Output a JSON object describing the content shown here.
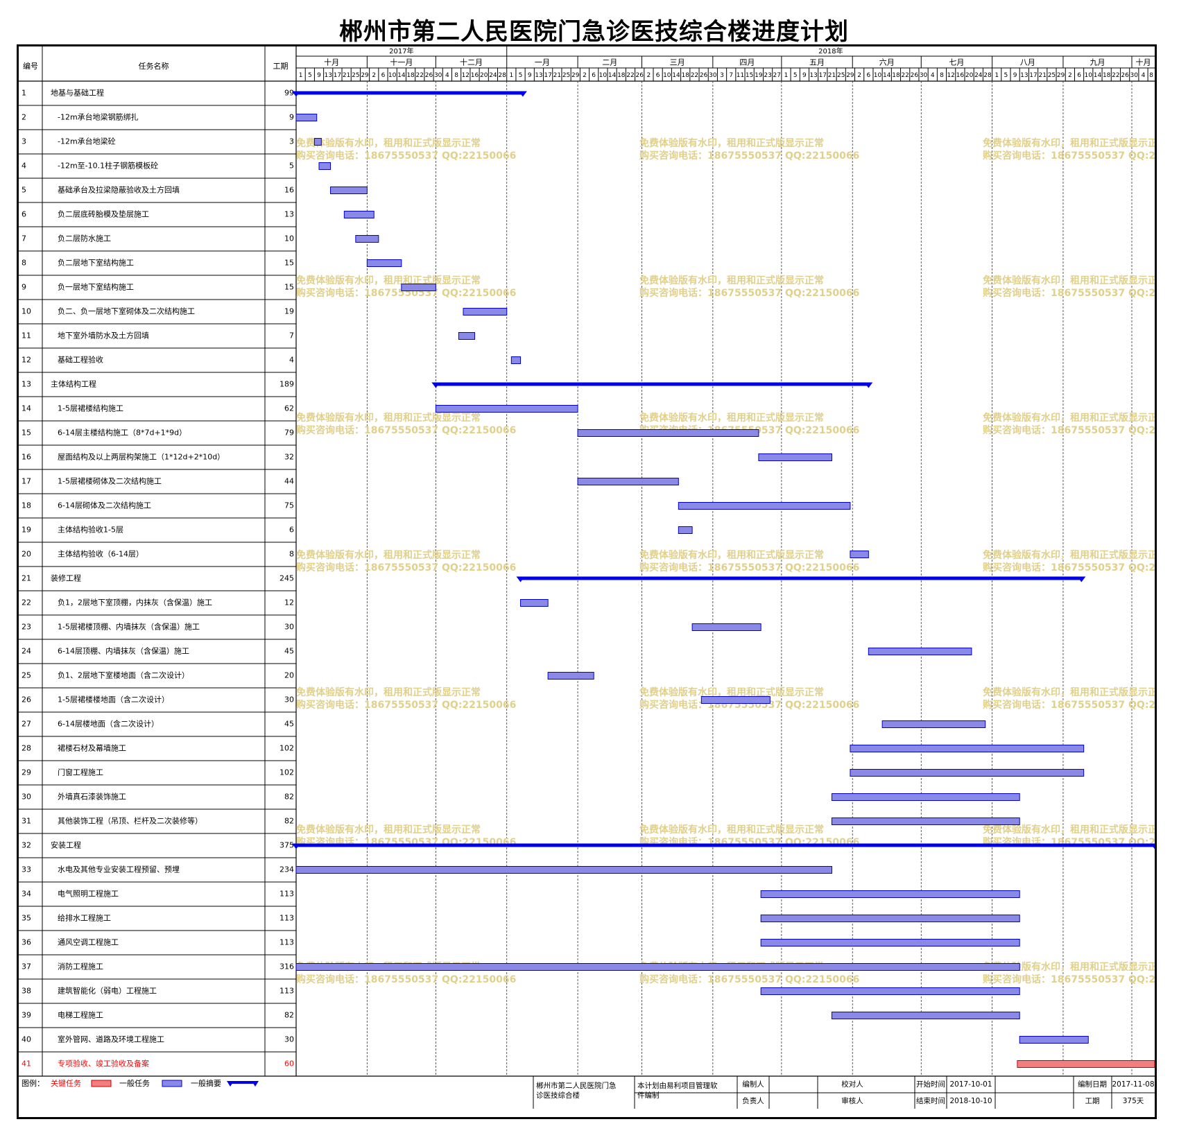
{
  "title": "郴州市第二人民医院门急诊医技综合楼进度计划",
  "columns": {
    "id": "编号",
    "name": "任务名称",
    "duration": "工期"
  },
  "timeline": {
    "years": [
      {
        "label": "2017年",
        "start": "2017-10-01",
        "end": "2017-12-31"
      },
      {
        "label": "2018年",
        "start": "2018-01-01",
        "end": "2018-10-10"
      }
    ],
    "months": [
      {
        "label": "十月",
        "start": "2017-10-01",
        "end": "2017-10-31"
      },
      {
        "label": "十一月",
        "start": "2017-11-01",
        "end": "2017-11-30"
      },
      {
        "label": "十二月",
        "start": "2017-12-01",
        "end": "2017-12-31"
      },
      {
        "label": "一月",
        "start": "2018-01-01",
        "end": "2018-01-31"
      },
      {
        "label": "二月",
        "start": "2018-02-01",
        "end": "2018-02-28"
      },
      {
        "label": "三月",
        "start": "2018-03-01",
        "end": "2018-03-31"
      },
      {
        "label": "四月",
        "start": "2018-04-01",
        "end": "2018-04-30"
      },
      {
        "label": "五月",
        "start": "2018-05-01",
        "end": "2018-05-31"
      },
      {
        "label": "六月",
        "start": "2018-06-01",
        "end": "2018-06-30"
      },
      {
        "label": "七月",
        "start": "2018-07-01",
        "end": "2018-07-31"
      },
      {
        "label": "八月",
        "start": "2018-08-01",
        "end": "2018-08-31"
      },
      {
        "label": "九月",
        "start": "2018-09-01",
        "end": "2018-09-30"
      },
      {
        "label": "十月",
        "start": "2018-10-01",
        "end": "2018-10-10"
      }
    ],
    "ticks": [
      {
        "label": "1",
        "date": "2017-10-01"
      },
      {
        "label": "5",
        "date": "2017-10-05"
      },
      {
        "label": "9",
        "date": "2017-10-09"
      },
      {
        "label": "13",
        "date": "2017-10-13"
      },
      {
        "label": "17",
        "date": "2017-10-17"
      },
      {
        "label": "21",
        "date": "2017-10-21"
      },
      {
        "label": "25",
        "date": "2017-10-25"
      },
      {
        "label": "29",
        "date": "2017-10-29"
      },
      {
        "label": "2",
        "date": "2017-11-02"
      },
      {
        "label": "6",
        "date": "2017-11-06"
      },
      {
        "label": "10",
        "date": "2017-11-10"
      },
      {
        "label": "14",
        "date": "2017-11-14"
      },
      {
        "label": "18",
        "date": "2017-11-18"
      },
      {
        "label": "22",
        "date": "2017-11-22"
      },
      {
        "label": "26",
        "date": "2017-11-26"
      },
      {
        "label": "30",
        "date": "2017-11-30"
      },
      {
        "label": "4",
        "date": "2017-12-04"
      },
      {
        "label": "8",
        "date": "2017-12-08"
      },
      {
        "label": "12",
        "date": "2017-12-12"
      },
      {
        "label": "16",
        "date": "2017-12-16"
      },
      {
        "label": "20",
        "date": "2017-12-20"
      },
      {
        "label": "24",
        "date": "2017-12-24"
      },
      {
        "label": "28",
        "date": "2017-12-28"
      },
      {
        "label": "1",
        "date": "2018-01-01"
      },
      {
        "label": "5",
        "date": "2018-01-05"
      },
      {
        "label": "9",
        "date": "2018-01-09"
      },
      {
        "label": "13",
        "date": "2018-01-13"
      },
      {
        "label": "17",
        "date": "2018-01-17"
      },
      {
        "label": "21",
        "date": "2018-01-21"
      },
      {
        "label": "25",
        "date": "2018-01-25"
      },
      {
        "label": "29",
        "date": "2018-01-29"
      },
      {
        "label": "2",
        "date": "2018-02-02"
      },
      {
        "label": "6",
        "date": "2018-02-06"
      },
      {
        "label": "10",
        "date": "2018-02-10"
      },
      {
        "label": "14",
        "date": "2018-02-14"
      },
      {
        "label": "18",
        "date": "2018-02-18"
      },
      {
        "label": "22",
        "date": "2018-02-22"
      },
      {
        "label": "26",
        "date": "2018-02-26"
      },
      {
        "label": "2",
        "date": "2018-03-02"
      },
      {
        "label": "6",
        "date": "2018-03-06"
      },
      {
        "label": "10",
        "date": "2018-03-10"
      },
      {
        "label": "14",
        "date": "2018-03-14"
      },
      {
        "label": "18",
        "date": "2018-03-18"
      },
      {
        "label": "22",
        "date": "2018-03-22"
      },
      {
        "label": "26",
        "date": "2018-03-26"
      },
      {
        "label": "30",
        "date": "2018-03-30"
      },
      {
        "label": "3",
        "date": "2018-04-03"
      },
      {
        "label": "7",
        "date": "2018-04-07"
      },
      {
        "label": "11",
        "date": "2018-04-11"
      },
      {
        "label": "15",
        "date": "2018-04-15"
      },
      {
        "label": "19",
        "date": "2018-04-19"
      },
      {
        "label": "23",
        "date": "2018-04-23"
      },
      {
        "label": "27",
        "date": "2018-04-27"
      },
      {
        "label": "1",
        "date": "2018-05-01"
      },
      {
        "label": "5",
        "date": "2018-05-05"
      },
      {
        "label": "9",
        "date": "2018-05-09"
      },
      {
        "label": "13",
        "date": "2018-05-13"
      },
      {
        "label": "17",
        "date": "2018-05-17"
      },
      {
        "label": "21",
        "date": "2018-05-21"
      },
      {
        "label": "25",
        "date": "2018-05-25"
      },
      {
        "label": "29",
        "date": "2018-05-29"
      },
      {
        "label": "2",
        "date": "2018-06-02"
      },
      {
        "label": "6",
        "date": "2018-06-06"
      },
      {
        "label": "10",
        "date": "2018-06-10"
      },
      {
        "label": "14",
        "date": "2018-06-14"
      },
      {
        "label": "18",
        "date": "2018-06-18"
      },
      {
        "label": "22",
        "date": "2018-06-22"
      },
      {
        "label": "26",
        "date": "2018-06-26"
      },
      {
        "label": "30",
        "date": "2018-06-30"
      },
      {
        "label": "4",
        "date": "2018-07-04"
      },
      {
        "label": "8",
        "date": "2018-07-08"
      },
      {
        "label": "12",
        "date": "2018-07-12"
      },
      {
        "label": "16",
        "date": "2018-07-16"
      },
      {
        "label": "20",
        "date": "2018-07-20"
      },
      {
        "label": "24",
        "date": "2018-07-24"
      },
      {
        "label": "28",
        "date": "2018-07-28"
      },
      {
        "label": "1",
        "date": "2018-08-01"
      },
      {
        "label": "5",
        "date": "2018-08-05"
      },
      {
        "label": "9",
        "date": "2018-08-09"
      },
      {
        "label": "13",
        "date": "2018-08-13"
      },
      {
        "label": "17",
        "date": "2018-08-17"
      },
      {
        "label": "21",
        "date": "2018-08-21"
      },
      {
        "label": "25",
        "date": "2018-08-25"
      },
      {
        "label": "29",
        "date": "2018-08-29"
      },
      {
        "label": "2",
        "date": "2018-09-02"
      },
      {
        "label": "6",
        "date": "2018-09-06"
      },
      {
        "label": "10",
        "date": "2018-09-10"
      },
      {
        "label": "14",
        "date": "2018-09-14"
      },
      {
        "label": "18",
        "date": "2018-09-18"
      },
      {
        "label": "22",
        "date": "2018-09-22"
      },
      {
        "label": "26",
        "date": "2018-09-26"
      },
      {
        "label": "30",
        "date": "2018-09-30"
      },
      {
        "label": "4",
        "date": "2018-10-04"
      },
      {
        "label": "8",
        "date": "2018-10-08"
      }
    ]
  },
  "chart_data": {
    "type": "gantt",
    "x_range": [
      "2017-10-01",
      "2018-10-10"
    ],
    "tasks": [
      {
        "id": "1",
        "name": "地基与基础工程",
        "duration": "99",
        "start": "2017-10-01",
        "end": "2018-01-07",
        "kind": "summary",
        "indent": 0
      },
      {
        "id": "2",
        "name": "-12m承台地梁钢筋绑扎",
        "duration": "9",
        "start": "2017-10-01",
        "end": "2017-10-09",
        "kind": "task",
        "indent": 1
      },
      {
        "id": "3",
        "name": "-12m承台地梁砼",
        "duration": "3",
        "start": "2017-10-09",
        "end": "2017-10-11",
        "kind": "task",
        "indent": 1
      },
      {
        "id": "4",
        "name": "-12m至-10.1柱子钢筋模板砼",
        "duration": "5",
        "start": "2017-10-11",
        "end": "2017-10-15",
        "kind": "task",
        "indent": 1
      },
      {
        "id": "5",
        "name": "基础承台及拉梁隐蔽验收及土方回填",
        "duration": "16",
        "start": "2017-10-16",
        "end": "2017-10-31",
        "kind": "task",
        "indent": 1
      },
      {
        "id": "6",
        "name": "负二层底砖胎模及垫层施工",
        "duration": "13",
        "start": "2017-10-22",
        "end": "2017-11-03",
        "kind": "task",
        "indent": 1
      },
      {
        "id": "7",
        "name": "负二层防水施工",
        "duration": "10",
        "start": "2017-10-27",
        "end": "2017-11-05",
        "kind": "task",
        "indent": 1
      },
      {
        "id": "8",
        "name": "负二层地下室结构施工",
        "duration": "15",
        "start": "2017-11-01",
        "end": "2017-11-15",
        "kind": "task",
        "indent": 1
      },
      {
        "id": "9",
        "name": "负一层地下室结构施工",
        "duration": "15",
        "start": "2017-11-16",
        "end": "2017-11-30",
        "kind": "task",
        "indent": 1
      },
      {
        "id": "10",
        "name": "负二、负一层地下室砌体及二次结构施工",
        "duration": "19",
        "start": "2017-12-13",
        "end": "2017-12-31",
        "kind": "task",
        "indent": 1
      },
      {
        "id": "11",
        "name": "地下室外墙防水及土方回填",
        "duration": "7",
        "start": "2017-12-11",
        "end": "2017-12-17",
        "kind": "task",
        "indent": 1
      },
      {
        "id": "12",
        "name": "基础工程验收",
        "duration": "4",
        "start": "2018-01-03",
        "end": "2018-01-06",
        "kind": "task",
        "indent": 1
      },
      {
        "id": "13",
        "name": "主体结构工程",
        "duration": "189",
        "start": "2017-12-01",
        "end": "2018-06-07",
        "kind": "summary",
        "indent": 0
      },
      {
        "id": "14",
        "name": "1-5层裙楼结构施工",
        "duration": "62",
        "start": "2017-12-01",
        "end": "2018-01-31",
        "kind": "task",
        "indent": 1
      },
      {
        "id": "15",
        "name": "6-14层主楼结构施工（8*7d+1*9d）",
        "duration": "79",
        "start": "2018-02-01",
        "end": "2018-04-20",
        "kind": "task",
        "indent": 1
      },
      {
        "id": "16",
        "name": "屋面结构及以上两层构架施工（1*12d+2*10d）",
        "duration": "32",
        "start": "2018-04-21",
        "end": "2018-05-22",
        "kind": "task",
        "indent": 1
      },
      {
        "id": "17",
        "name": "1-5层裙楼砌体及二次结构施工",
        "duration": "44",
        "start": "2018-02-01",
        "end": "2018-03-16",
        "kind": "task",
        "indent": 1
      },
      {
        "id": "18",
        "name": "6-14层砌体及二次结构施工",
        "duration": "75",
        "start": "2018-03-17",
        "end": "2018-05-30",
        "kind": "task",
        "indent": 1
      },
      {
        "id": "19",
        "name": "主体结构验收1-5层",
        "duration": "6",
        "start": "2018-03-17",
        "end": "2018-03-22",
        "kind": "task",
        "indent": 1
      },
      {
        "id": "20",
        "name": "主体结构验收（6-14层）",
        "duration": "8",
        "start": "2018-05-31",
        "end": "2018-06-07",
        "kind": "task",
        "indent": 1
      },
      {
        "id": "21",
        "name": "装修工程",
        "duration": "245",
        "start": "2018-01-07",
        "end": "2018-09-08",
        "kind": "summary",
        "indent": 0
      },
      {
        "id": "22",
        "name": "负1，2层地下室顶棚，内抹灰（含保温）施工",
        "duration": "12",
        "start": "2018-01-07",
        "end": "2018-01-18",
        "kind": "task",
        "indent": 1
      },
      {
        "id": "23",
        "name": "1-5层裙楼顶棚、内墙抹灰（含保温）施工",
        "duration": "30",
        "start": "2018-03-23",
        "end": "2018-04-21",
        "kind": "task",
        "indent": 1
      },
      {
        "id": "24",
        "name": "6-14层顶棚、内墙抹灰（含保温）施工",
        "duration": "45",
        "start": "2018-06-08",
        "end": "2018-07-22",
        "kind": "task",
        "indent": 1
      },
      {
        "id": "25",
        "name": "负1、2层地下室楼地面（含二次设计）",
        "duration": "20",
        "start": "2018-01-19",
        "end": "2018-02-07",
        "kind": "task",
        "indent": 1
      },
      {
        "id": "26",
        "name": "1-5层裙楼楼地面（含二次设计）",
        "duration": "30",
        "start": "2018-03-27",
        "end": "2018-04-25",
        "kind": "task",
        "indent": 1
      },
      {
        "id": "27",
        "name": "6-14层楼地面（含二次设计）",
        "duration": "45",
        "start": "2018-06-14",
        "end": "2018-07-28",
        "kind": "task",
        "indent": 1
      },
      {
        "id": "28",
        "name": "裙楼石材及幕墙施工",
        "duration": "102",
        "start": "2018-05-31",
        "end": "2018-09-09",
        "kind": "task",
        "indent": 1
      },
      {
        "id": "29",
        "name": "门窗工程施工",
        "duration": "102",
        "start": "2018-05-31",
        "end": "2018-09-09",
        "kind": "task",
        "indent": 1
      },
      {
        "id": "30",
        "name": "外墙真石漆装饰施工",
        "duration": "82",
        "start": "2018-05-23",
        "end": "2018-08-12",
        "kind": "task",
        "indent": 1
      },
      {
        "id": "31",
        "name": "其他装饰工程（吊顶、栏杆及二次装修等）",
        "duration": "82",
        "start": "2018-05-23",
        "end": "2018-08-12",
        "kind": "task",
        "indent": 1
      },
      {
        "id": "32",
        "name": "安装工程",
        "duration": "375",
        "start": "2017-10-01",
        "end": "2018-10-10",
        "kind": "summary",
        "indent": 0
      },
      {
        "id": "33",
        "name": "水电及其他专业安装工程预留、预埋",
        "duration": "234",
        "start": "2017-10-01",
        "end": "2018-05-22",
        "kind": "task",
        "indent": 1
      },
      {
        "id": "34",
        "name": "电气照明工程施工",
        "duration": "113",
        "start": "2018-04-22",
        "end": "2018-08-12",
        "kind": "task",
        "indent": 1
      },
      {
        "id": "35",
        "name": "给排水工程施工",
        "duration": "113",
        "start": "2018-04-22",
        "end": "2018-08-12",
        "kind": "task",
        "indent": 1
      },
      {
        "id": "36",
        "name": "通风空调工程施工",
        "duration": "113",
        "start": "2018-04-22",
        "end": "2018-08-12",
        "kind": "task",
        "indent": 1
      },
      {
        "id": "37",
        "name": "消防工程施工",
        "duration": "316",
        "start": "2017-10-01",
        "end": "2018-08-12",
        "kind": "task",
        "indent": 1
      },
      {
        "id": "38",
        "name": "建筑智能化（弱电）工程施工",
        "duration": "113",
        "start": "2018-04-22",
        "end": "2018-08-12",
        "kind": "task",
        "indent": 1
      },
      {
        "id": "39",
        "name": "电梯工程施工",
        "duration": "82",
        "start": "2018-05-23",
        "end": "2018-08-12",
        "kind": "task",
        "indent": 1
      },
      {
        "id": "40",
        "name": "室外管网、道路及环境工程施工",
        "duration": "30",
        "start": "2018-08-13",
        "end": "2018-09-11",
        "kind": "task",
        "indent": 1
      },
      {
        "id": "41",
        "name": "专项验收、竣工验收及备案",
        "duration": "60",
        "start": "2018-08-12",
        "end": "2018-10-10",
        "kind": "critical",
        "indent": 1
      }
    ]
  },
  "colors": {
    "task": "#8a8ae6",
    "task_stroke": "#0000cc",
    "summary": "#0000ee",
    "critical": "#f08080",
    "critical_text": "#ff0000",
    "watermark": "#e0d08a"
  },
  "watermark": {
    "line1": "免费体验版有水印，租用和正式版显示正常",
    "line2": "购买咨询电话：18675550537 QQ:22150066"
  },
  "legend": {
    "label": "图例：",
    "critical": "关键任务",
    "task": "一般任务",
    "summary": "一般摘要"
  },
  "footer": {
    "project": "郴州市第二人民医院门急诊医技综合楼",
    "made_by": "本计划由易利项目管理软件编制",
    "editor_label": "编制人",
    "checker_label": "校对人",
    "owner_label": "负责人",
    "reviewer_label": "审核人",
    "start_label": "开始时间",
    "start_value": "2017-10-01",
    "end_label": "结束时间",
    "end_value": "2018-10-10",
    "date_label": "编制日期",
    "date_value": "2017-11-08",
    "duration_label": "工期",
    "duration_value": "375天"
  }
}
